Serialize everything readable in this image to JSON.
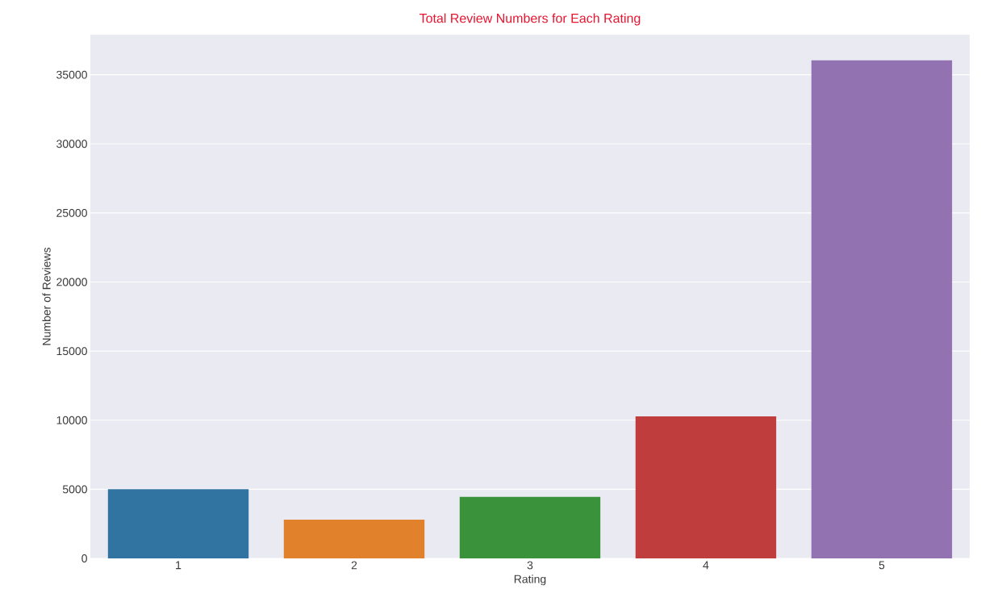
{
  "chart_data": {
    "type": "bar",
    "title": "Total Review Numbers for Each Rating",
    "xlabel": "Rating",
    "ylabel": "Number of Reviews",
    "categories": [
      "1",
      "2",
      "3",
      "4",
      "5"
    ],
    "values": [
      5000,
      2800,
      4450,
      10270,
      36050
    ],
    "colors": [
      "#3274a1",
      "#e1812c",
      "#3a923a",
      "#c03d3e",
      "#9372b2"
    ],
    "ylim": [
      0,
      37900
    ],
    "yticks": [
      0,
      5000,
      10000,
      15000,
      20000,
      25000,
      30000,
      35000
    ],
    "grid": "y"
  }
}
